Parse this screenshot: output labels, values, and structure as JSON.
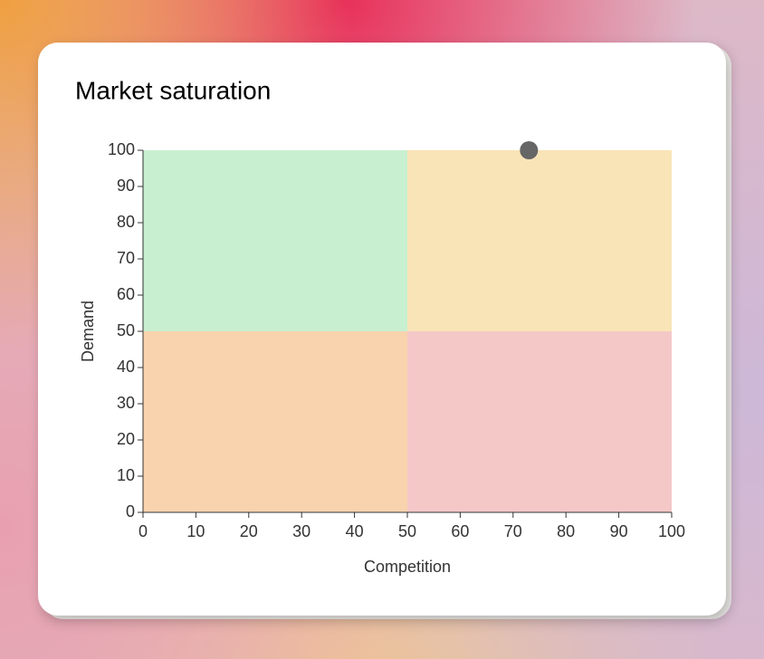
{
  "chart_data": {
    "type": "scatter",
    "title": "Market saturation",
    "x_label": "Competition",
    "y_label": "Demand",
    "xlim": [
      0,
      100
    ],
    "ylim": [
      0,
      100
    ],
    "xticks": [
      0,
      10,
      20,
      30,
      40,
      50,
      60,
      70,
      80,
      90,
      100
    ],
    "yticks": [
      0,
      10,
      20,
      30,
      40,
      50,
      60,
      70,
      80,
      90,
      100
    ],
    "quadrants": [
      {
        "x": [
          0,
          50
        ],
        "y": [
          50,
          100
        ],
        "color": "#c8efd0"
      },
      {
        "x": [
          50,
          100
        ],
        "y": [
          50,
          100
        ],
        "color": "#f9e4b7"
      },
      {
        "x": [
          0,
          50
        ],
        "y": [
          0,
          50
        ],
        "color": "#f8d3ae"
      },
      {
        "x": [
          50,
          100
        ],
        "y": [
          0,
          50
        ],
        "color": "#f5c8c8"
      }
    ],
    "series": [
      {
        "color": "#666666",
        "x": [
          73
        ],
        "values": [
          100
        ]
      }
    ]
  }
}
